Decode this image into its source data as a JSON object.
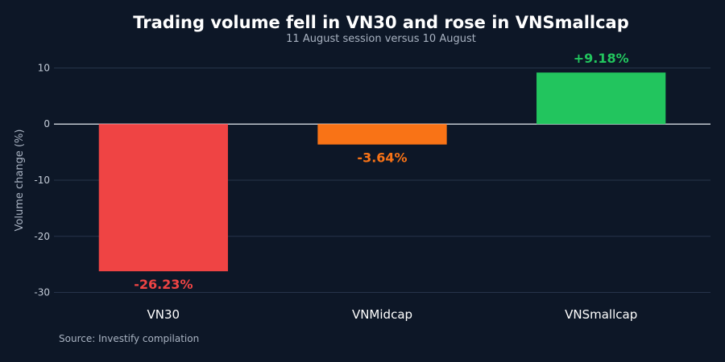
{
  "chart_data": {
    "type": "bar",
    "title": "Trading volume fell in VN30 and rose in VNSmallcap",
    "subtitle": "11 August session versus 10 August",
    "ylabel": "Volume change (%)",
    "xlabel": "",
    "categories": [
      "VN30",
      "VNMidcap",
      "VNSmallcap"
    ],
    "values": [
      -26.23,
      -3.64,
      9.18
    ],
    "data_labels": [
      "-26.23%",
      "-3.64%",
      "+9.18%"
    ],
    "colors": [
      "#ef4444",
      "#f97316",
      "#22c55e"
    ],
    "ylim": [
      -30.5,
      10.5
    ],
    "yticks": [
      10,
      0,
      -10,
      -20,
      -30
    ],
    "grid": true,
    "legend": "none"
  },
  "source": "Source: Investify compilation"
}
